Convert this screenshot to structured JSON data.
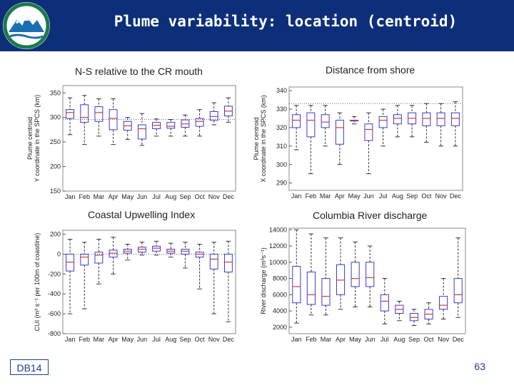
{
  "header": {
    "title": "Plume variability: location (centroid)",
    "logo_colors": {
      "ring": "#1a7a4a",
      "mountain": "#1a6fb0"
    }
  },
  "footer": {
    "slide_tag": "DB14",
    "page_number": "63"
  },
  "colors": {
    "header_bg": "#0d2f7a",
    "box": "#3a3ad6",
    "median": "#d23a3a",
    "whisker": "#333333",
    "reference_line": "#666666"
  },
  "chart_data": [
    {
      "type": "box",
      "panel_title": "N-S relative to the CR mouth",
      "ylabel_lines": [
        "Plume centroid",
        "Y coordinate in the SPCS (km)"
      ],
      "categories": [
        "Jan",
        "Feb",
        "Mar",
        "Apr",
        "May",
        "Jun",
        "Jul",
        "Aug",
        "Sep",
        "Oct",
        "Nov",
        "Dec"
      ],
      "ylim": [
        150,
        365
      ],
      "yticks": [
        150,
        200,
        250,
        300,
        350
      ],
      "reference_line": 296,
      "boxes": [
        {
          "q1": 298,
          "median": 310,
          "q3": 316,
          "whislo": 265,
          "whishi": 340
        },
        {
          "q1": 290,
          "median": 300,
          "q3": 326,
          "whislo": 245,
          "whishi": 345
        },
        {
          "q1": 292,
          "median": 310,
          "q3": 322,
          "whislo": 262,
          "whishi": 338
        },
        {
          "q1": 275,
          "median": 298,
          "q3": 316,
          "whislo": 245,
          "whishi": 338
        },
        {
          "q1": 274,
          "median": 283,
          "q3": 292,
          "whislo": 255,
          "whishi": 300
        },
        {
          "q1": 256,
          "median": 277,
          "q3": 285,
          "whislo": 243,
          "whishi": 308
        },
        {
          "q1": 277,
          "median": 284,
          "q3": 290,
          "whislo": 262,
          "whishi": 297
        },
        {
          "q1": 278,
          "median": 282,
          "q3": 290,
          "whislo": 262,
          "whishi": 296
        },
        {
          "q1": 280,
          "median": 287,
          "q3": 295,
          "whislo": 262,
          "whishi": 305
        },
        {
          "q1": 282,
          "median": 292,
          "q3": 298,
          "whislo": 262,
          "whishi": 316
        },
        {
          "q1": 294,
          "median": 302,
          "q3": 312,
          "whislo": 285,
          "whishi": 330
        },
        {
          "q1": 303,
          "median": 313,
          "q3": 323,
          "whislo": 290,
          "whishi": 340
        }
      ]
    },
    {
      "type": "box",
      "panel_title": "Distance from shore",
      "ylabel_lines": [
        "Plume centroid",
        "X coordinate in the SPCS (km)"
      ],
      "categories": [
        "Jan",
        "Feb",
        "Mar",
        "Apr",
        "May",
        "Jun",
        "Jul",
        "Aug",
        "Sep",
        "Oct",
        "Nov",
        "Dec"
      ],
      "ylim": [
        286,
        342
      ],
      "yticks": [
        290,
        300,
        310,
        320,
        330,
        340
      ],
      "reference_line": 333,
      "boxes": [
        {
          "q1": 320,
          "median": 324,
          "q3": 327,
          "whislo": 308,
          "whishi": 332
        },
        {
          "q1": 315,
          "median": 324,
          "q3": 328,
          "whislo": 295,
          "whishi": 332
        },
        {
          "q1": 320,
          "median": 323,
          "q3": 327,
          "whislo": 310,
          "whishi": 332
        },
        {
          "q1": 311,
          "median": 320,
          "q3": 324,
          "whislo": 300,
          "whishi": 328
        },
        {
          "q1": 324,
          "median": 324,
          "q3": 324,
          "whislo": 322,
          "whishi": 326
        },
        {
          "q1": 313,
          "median": 319,
          "q3": 322,
          "whislo": 295,
          "whishi": 328
        },
        {
          "q1": 320,
          "median": 324,
          "q3": 326,
          "whislo": 310,
          "whishi": 330
        },
        {
          "q1": 322,
          "median": 325,
          "q3": 327,
          "whislo": 315,
          "whishi": 332
        },
        {
          "q1": 322,
          "median": 325,
          "q3": 328,
          "whislo": 315,
          "whishi": 332
        },
        {
          "q1": 321,
          "median": 325,
          "q3": 328,
          "whislo": 312,
          "whishi": 333
        },
        {
          "q1": 321,
          "median": 325,
          "q3": 328,
          "whislo": 310,
          "whishi": 333
        },
        {
          "q1": 321,
          "median": 325,
          "q3": 328,
          "whislo": 310,
          "whishi": 334
        }
      ]
    },
    {
      "type": "box",
      "panel_title": "Coastal Upwelling Index",
      "ylabel_lines": [
        "CUI (m³ s⁻¹ per 100m of coastline)"
      ],
      "categories": [
        "Jan",
        "Feb",
        "Mar",
        "Apr",
        "May",
        "Jun",
        "Jul",
        "Aug",
        "Sep",
        "Oct",
        "Nov",
        "Dec"
      ],
      "ylim": [
        -800,
        240
      ],
      "yticks": [
        -800,
        -600,
        -400,
        -200,
        0,
        200
      ],
      "reference_line": 0,
      "boxes": [
        {
          "q1": -170,
          "median": -80,
          "q3": 0,
          "whislo": -600,
          "whishi": 150
        },
        {
          "q1": -110,
          "median": -30,
          "q3": 0,
          "whislo": -550,
          "whishi": 120
        },
        {
          "q1": -90,
          "median": -10,
          "q3": 20,
          "whislo": -300,
          "whishi": 150
        },
        {
          "q1": -30,
          "median": 10,
          "q3": 40,
          "whislo": -200,
          "whishi": 170
        },
        {
          "q1": 10,
          "median": 30,
          "q3": 50,
          "whislo": -60,
          "whishi": 100
        },
        {
          "q1": 20,
          "median": 50,
          "q3": 70,
          "whislo": -10,
          "whishi": 120
        },
        {
          "q1": 30,
          "median": 60,
          "q3": 80,
          "whislo": -10,
          "whishi": 130
        },
        {
          "q1": 10,
          "median": 30,
          "q3": 50,
          "whislo": -30,
          "whishi": 110
        },
        {
          "q1": 0,
          "median": 30,
          "q3": 50,
          "whislo": -140,
          "whishi": 120
        },
        {
          "q1": -30,
          "median": 0,
          "q3": 20,
          "whislo": -350,
          "whishi": 100
        },
        {
          "q1": -150,
          "median": -50,
          "q3": 0,
          "whislo": -600,
          "whishi": 120
        },
        {
          "q1": -180,
          "median": -80,
          "q3": 0,
          "whislo": -680,
          "whishi": 130
        }
      ]
    },
    {
      "type": "box",
      "panel_title": "Columbia River discharge",
      "ylabel_lines": [
        "River discharge (m³s⁻¹)"
      ],
      "categories": [
        "Jan",
        "Feb",
        "Mar",
        "Apr",
        "May",
        "Jun",
        "Jul",
        "Aug",
        "Sep",
        "Oct",
        "Nov",
        "Dec"
      ],
      "ylim": [
        1200,
        14200
      ],
      "yticks": [
        2000,
        4000,
        6000,
        8000,
        10000,
        12000,
        14000
      ],
      "boxes": [
        {
          "q1": 5000,
          "median": 7000,
          "q3": 9500,
          "whislo": 2500,
          "whishi": 14000
        },
        {
          "q1": 4800,
          "median": 6000,
          "q3": 8800,
          "whislo": 3500,
          "whishi": 13500
        },
        {
          "q1": 4700,
          "median": 5800,
          "q3": 8000,
          "whislo": 3500,
          "whishi": 13000
        },
        {
          "q1": 6000,
          "median": 7800,
          "q3": 9700,
          "whislo": 4200,
          "whishi": 13000
        },
        {
          "q1": 7000,
          "median": 8000,
          "q3": 10000,
          "whislo": 4500,
          "whishi": 12500
        },
        {
          "q1": 7000,
          "median": 8100,
          "q3": 10000,
          "whislo": 4500,
          "whishi": 12000
        },
        {
          "q1": 4000,
          "median": 5200,
          "q3": 6000,
          "whislo": 2400,
          "whishi": 8000
        },
        {
          "q1": 3700,
          "median": 4200,
          "q3": 4700,
          "whislo": 2800,
          "whishi": 5200
        },
        {
          "q1": 2800,
          "median": 3200,
          "q3": 3700,
          "whislo": 2200,
          "whishi": 4200
        },
        {
          "q1": 3000,
          "median": 3600,
          "q3": 4200,
          "whislo": 2400,
          "whishi": 5000
        },
        {
          "q1": 4200,
          "median": 4700,
          "q3": 5800,
          "whislo": 3000,
          "whishi": 8000
        },
        {
          "q1": 5000,
          "median": 6000,
          "q3": 8000,
          "whislo": 3200,
          "whishi": 13000
        }
      ]
    }
  ]
}
